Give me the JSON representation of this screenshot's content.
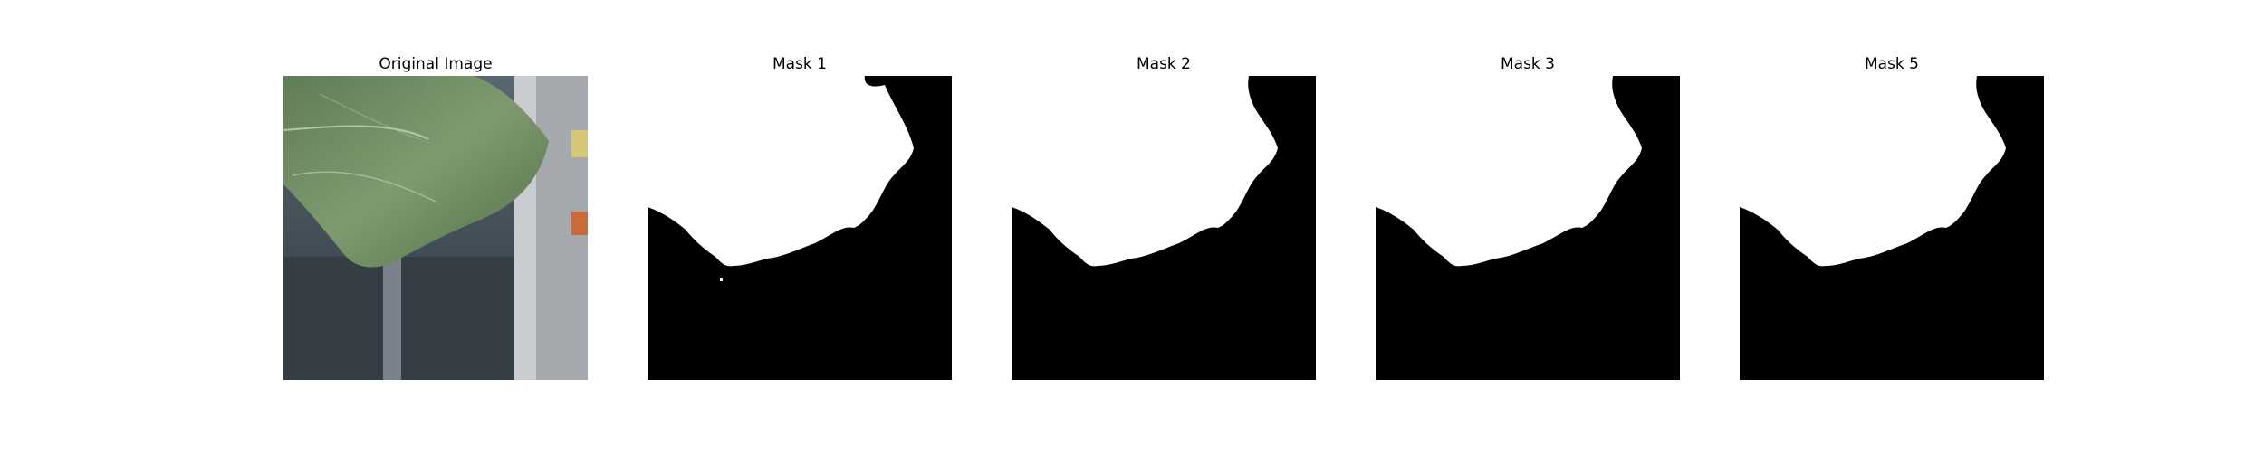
{
  "panels": [
    {
      "title": "Original Image"
    },
    {
      "title": "Mask 1"
    },
    {
      "title": "Mask 2"
    },
    {
      "title": "Mask 3"
    },
    {
      "title": "Mask 5"
    }
  ],
  "colors": {
    "mask_fg": "#ffffff",
    "mask_bg": "#000000",
    "background": "#ffffff"
  }
}
